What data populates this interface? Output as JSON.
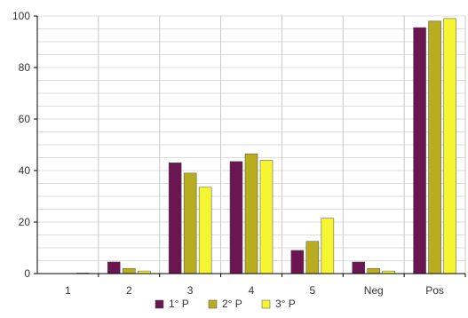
{
  "chart_data": {
    "type": "bar",
    "categories": [
      "1",
      "2",
      "3",
      "4",
      "5",
      "Neg",
      "Pos"
    ],
    "series": [
      {
        "name": "1° P",
        "color": "#6b1650",
        "values": [
          0,
          4.5,
          43,
          43.5,
          9,
          4.5,
          95.5
        ]
      },
      {
        "name": "2° P",
        "color": "#b8ad1e",
        "values": [
          0,
          2,
          39,
          46.5,
          12.5,
          2,
          98
        ]
      },
      {
        "name": "3° P",
        "color": "#f5f532",
        "values": [
          0.2,
          1,
          33.5,
          44,
          21.5,
          1,
          99
        ]
      }
    ],
    "yticks": [
      "0",
      "20",
      "40",
      "60",
      "80",
      "100"
    ],
    "ylim": [
      0,
      100
    ],
    "title": "",
    "xlabel": "",
    "ylabel": "",
    "grid": true,
    "legend_position": "bottom"
  }
}
